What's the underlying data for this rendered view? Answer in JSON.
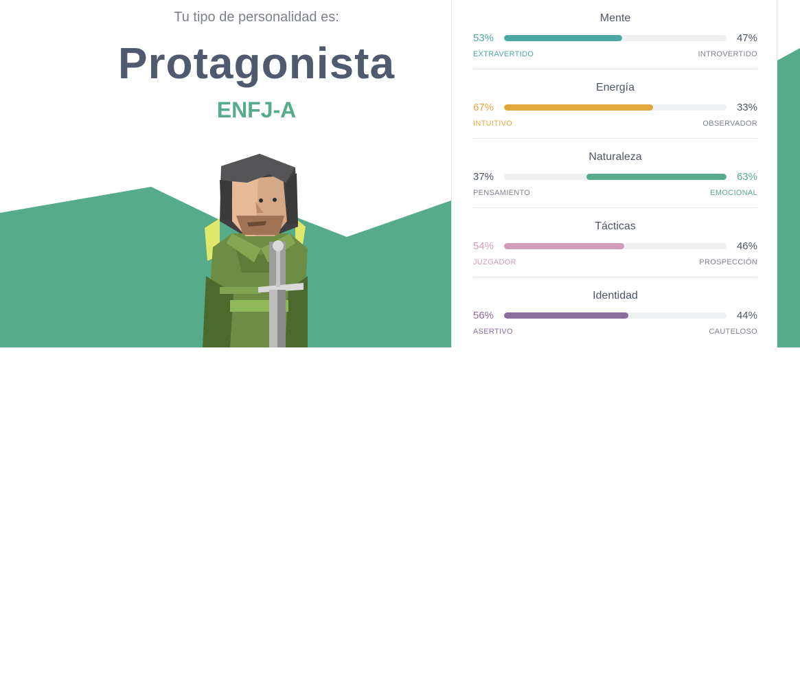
{
  "header": {
    "subtitle": "Tu tipo de personalidad es:",
    "type_name": "Protagonista",
    "type_code": "ENFJ-A"
  },
  "colors": {
    "green_bg": "#55ab8a",
    "title": "#4f5a6e",
    "neutral_text": "#4e5563",
    "muted_label": "#7d828b"
  },
  "traits": [
    {
      "title": "Mente",
      "left_pct": "53%",
      "right_pct": "47%",
      "left_label": "EXTRAVERTIDO",
      "right_label": "INTROVERTIDO",
      "value": 0.53,
      "dominant": "left",
      "color": "#4ea7a7"
    },
    {
      "title": "Energía",
      "left_pct": "67%",
      "right_pct": "33%",
      "left_label": "INTUITIVO",
      "right_label": "OBSERVADOR",
      "value": 0.67,
      "dominant": "left",
      "color": "#e2a83d"
    },
    {
      "title": "Naturaleza",
      "left_pct": "37%",
      "right_pct": "63%",
      "left_label": "PENSAMIENTO",
      "right_label": "EMOCIONAL",
      "value": 0.63,
      "dominant": "right",
      "color": "#55ab8a"
    },
    {
      "title": "Tácticas",
      "left_pct": "54%",
      "right_pct": "46%",
      "left_label": "JUZGADOR",
      "right_label": "PROSPECCIÓN",
      "value": 0.54,
      "dominant": "left",
      "color": "#d19db8"
    },
    {
      "title": "Identidad",
      "left_pct": "56%",
      "right_pct": "44%",
      "left_label": "ASERTIVO",
      "right_label": "CAUTELOSO",
      "value": 0.56,
      "dominant": "left",
      "color": "#8a6e9d"
    }
  ]
}
